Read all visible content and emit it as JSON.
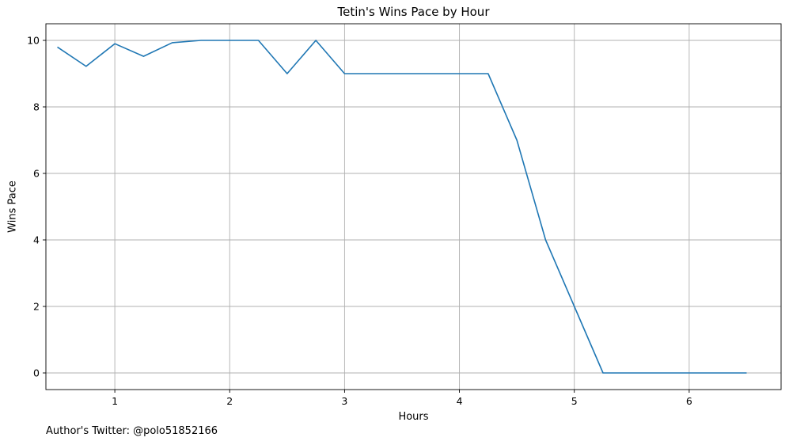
{
  "chart_data": {
    "type": "line",
    "title": "Tetin's Wins Pace by Hour",
    "xlabel": "Hours",
    "ylabel": "Wins Pace",
    "xlim": [
      0.4,
      6.8
    ],
    "ylim": [
      -0.5,
      10.5
    ],
    "xticks": [
      1,
      2,
      3,
      4,
      5,
      6
    ],
    "yticks": [
      0,
      2,
      4,
      6,
      8,
      10
    ],
    "grid": true,
    "line_color": "#1f77b4",
    "series": [
      {
        "x": [
          0.5,
          0.75,
          1.0,
          1.25,
          1.5,
          1.75,
          2.0,
          2.25,
          2.5,
          2.75,
          3.0,
          3.25,
          3.5,
          3.75,
          4.0,
          4.25,
          4.5,
          4.75,
          5.0,
          5.25,
          5.5,
          5.75,
          6.0,
          6.25,
          6.5
        ],
        "values": [
          9.8,
          9.22,
          9.9,
          9.52,
          9.93,
          10,
          10,
          10,
          9,
          10,
          9,
          9,
          9,
          9,
          9,
          9,
          7,
          4,
          2,
          0,
          0,
          0,
          0,
          0,
          0
        ]
      }
    ]
  },
  "footer_text": "Author's Twitter: @polo51852166"
}
